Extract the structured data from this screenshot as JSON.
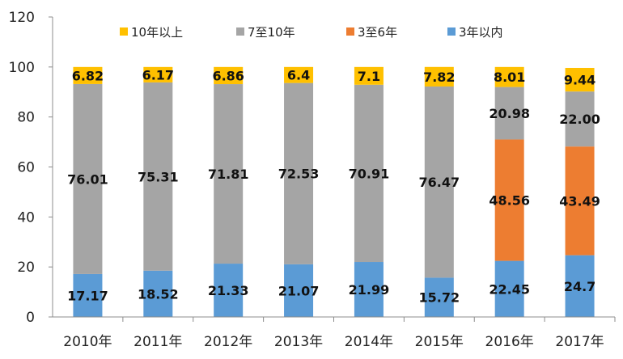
{
  "chart_data": {
    "type": "bar",
    "stacked": true,
    "categories": [
      "2010年",
      "2011年",
      "2012年",
      "2013年",
      "2014年",
      "2015年",
      "2016年",
      "2017年"
    ],
    "ylim": [
      0,
      120
    ],
    "yticks": [
      0,
      20,
      40,
      60,
      80,
      100,
      120
    ],
    "grid": false,
    "legend_position": "top",
    "legend_order": [
      "10年以上",
      "7至10年",
      "3至6年",
      "3年以内"
    ],
    "series": [
      {
        "name": "3年以内",
        "color": "#5B9BD5",
        "values": [
          17.17,
          18.52,
          21.33,
          21.07,
          21.99,
          15.72,
          22.45,
          24.7
        ],
        "labels": [
          "17.17",
          "18.52",
          "21.33",
          "21.07",
          "21.99",
          "15.72",
          "22.45",
          "24.7"
        ]
      },
      {
        "name": "3至6年",
        "color": "#ED7D31",
        "values": [
          0,
          0,
          0,
          0,
          0,
          0,
          48.56,
          43.49
        ],
        "labels": [
          "",
          "",
          "",
          "",
          "",
          "",
          "48.56",
          "43.49"
        ]
      },
      {
        "name": "7至10年",
        "color": "#A5A5A5",
        "values": [
          76.01,
          75.31,
          71.81,
          72.53,
          70.91,
          76.47,
          20.98,
          22.0
        ],
        "labels": [
          "76.01",
          "75.31",
          "71.81",
          "72.53",
          "70.91",
          "76.47",
          "20.98",
          "22.00"
        ]
      },
      {
        "name": "10年以上",
        "color": "#FFC000",
        "values": [
          6.82,
          6.17,
          6.86,
          6.4,
          7.1,
          7.82,
          8.01,
          9.44
        ],
        "labels": [
          "6.82",
          "6.17",
          "6.86",
          "6.4",
          "7.1",
          "7.82",
          "8.01",
          "9.44"
        ]
      }
    ]
  }
}
